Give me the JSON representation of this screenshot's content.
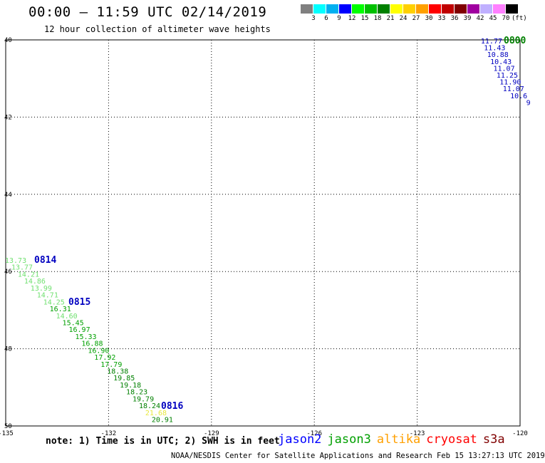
{
  "header": {
    "title": "00:00 – 11:59 UTC 02/14/2019",
    "subtitle": "12 hour collection of altimeter wave heights"
  },
  "colorbar": {
    "colors": [
      "#808080",
      "#00ffff",
      "#00b0f0",
      "#0000ff",
      "#00ff00",
      "#00c000",
      "#008000",
      "#ffff00",
      "#ffd000",
      "#ffa000",
      "#ff0000",
      "#c00000",
      "#800000",
      "#a000a0",
      "#c0b0ff",
      "#ff80ff",
      "#000000"
    ],
    "ticks": [
      "3",
      "6",
      "9",
      "12",
      "15",
      "18",
      "21",
      "24",
      "27",
      "30",
      "33",
      "36",
      "39",
      "42",
      "45",
      "70",
      "(ft)"
    ]
  },
  "map": {
    "lat_range": [
      40,
      50
    ],
    "lon_range": [
      -135,
      -120
    ],
    "lat_labels": [
      "40",
      "42",
      "44",
      "46",
      "48",
      "50"
    ],
    "lon_labels": [
      "-135",
      "-132",
      "-129",
      "-126",
      "-123",
      "-120"
    ],
    "tracks": [
      {
        "time": "0800",
        "time_color": "#008000",
        "values": [
          {
            "v": "11.77",
            "c": "#0000c0"
          },
          {
            "v": "11.43",
            "c": "#0000c0"
          },
          {
            "v": "10.88",
            "c": "#0000c0"
          },
          {
            "v": "10.43",
            "c": "#0000c0"
          },
          {
            "v": "11.07",
            "c": "#0000c0"
          },
          {
            "v": "11.25",
            "c": "#0000c0"
          },
          {
            "v": "11.90",
            "c": "#0000c0"
          },
          {
            "v": "11.07",
            "c": "#0000c0"
          },
          {
            "v": "10.6",
            "c": "#0000c0"
          },
          {
            "v": "9",
            "c": "#0000c0"
          }
        ]
      },
      {
        "time_labels": [
          {
            "t": "0814",
            "c": "#0000c0"
          },
          {
            "t": "0815",
            "c": "#0000c0"
          },
          {
            "t": "0816",
            "c": "#0000c0"
          }
        ],
        "values": [
          {
            "v": "13.73",
            "c": "#70e070"
          },
          {
            "v": "13.77",
            "c": "#70e070"
          },
          {
            "v": "14.21",
            "c": "#70e070"
          },
          {
            "v": "14.86",
            "c": "#70e070"
          },
          {
            "v": "13.99",
            "c": "#70e070"
          },
          {
            "v": "14.71",
            "c": "#70e070"
          },
          {
            "v": "14.25",
            "c": "#70e070"
          },
          {
            "v": "16.31",
            "c": "#00a000"
          },
          {
            "v": "14.60",
            "c": "#70e070"
          },
          {
            "v": "15.45",
            "c": "#00a000"
          },
          {
            "v": "16.97",
            "c": "#00a000"
          },
          {
            "v": "15.33",
            "c": "#00a000"
          },
          {
            "v": "16.88",
            "c": "#00a000"
          },
          {
            "v": "16.90",
            "c": "#00a000"
          },
          {
            "v": "17.92",
            "c": "#00a000"
          },
          {
            "v": "17.79",
            "c": "#00a000"
          },
          {
            "v": "18.38",
            "c": "#008000"
          },
          {
            "v": "19.85",
            "c": "#008000"
          },
          {
            "v": "19.18",
            "c": "#008000"
          },
          {
            "v": "18.23",
            "c": "#008000"
          },
          {
            "v": "19.79",
            "c": "#008000"
          },
          {
            "v": "18.24",
            "c": "#008000"
          },
          {
            "v": "21.68",
            "c": "#e8e840"
          },
          {
            "v": "20.91",
            "c": "#008000"
          }
        ]
      }
    ]
  },
  "footer": {
    "note": "note: 1) Time is in UTC; 2) SWH is in feet",
    "legend": [
      {
        "name": "jason2",
        "color": "#0000ff"
      },
      {
        "name": "jason3",
        "color": "#00a000"
      },
      {
        "name": "altika",
        "color": "#ffa000"
      },
      {
        "name": "cryosat",
        "color": "#ff0000"
      },
      {
        "name": "s3a",
        "color": "#800000"
      }
    ],
    "credit": "NOAA/NESDIS Center for Satellite Applications and Research   Feb 15 13:27:13 UTC 2019"
  }
}
